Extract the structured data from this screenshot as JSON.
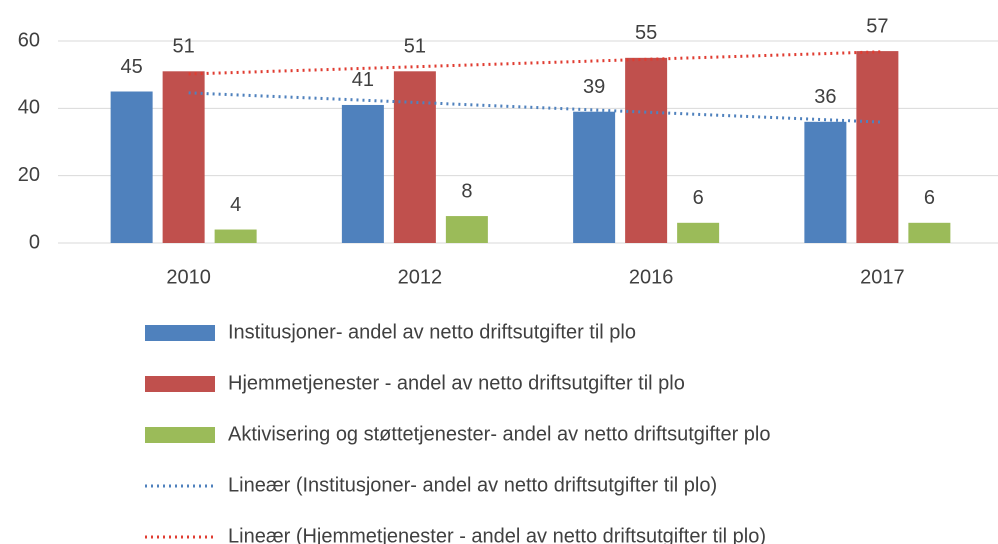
{
  "chart_data": {
    "type": "bar",
    "categories": [
      "2010",
      "2012",
      "2016",
      "2017"
    ],
    "ylim": [
      0,
      60
    ],
    "yticks": [
      0,
      20,
      40,
      60
    ],
    "grid": true,
    "series": [
      {
        "name": "Institusjoner- andel av netto driftsutgifter til plo",
        "color": "#4f81bd",
        "values": [
          45,
          41,
          39,
          36
        ]
      },
      {
        "name": "Hjemmetjenester - andel av netto driftsutgifter til plo",
        "color": "#c0504d",
        "values": [
          51,
          51,
          55,
          57
        ]
      },
      {
        "name": "Aktivisering og støttetjenester- andel av netto driftsutgifter plo",
        "color": "#9bbb59",
        "values": [
          4,
          8,
          6,
          6
        ]
      },
      {
        "name": "Lineær (Institusjoner- andel av netto driftsutgifter til plo)",
        "color": "#4f81bd",
        "type": "line",
        "line_style": "dotted",
        "values": [
          44.6,
          41.7,
          38.8,
          35.9
        ]
      },
      {
        "name": "Lineær (Hjemmetjenester - andel av netto driftsutgifter til plo)",
        "color": "#e03c31",
        "type": "line",
        "line_style": "dotted",
        "values": [
          50.2,
          52.4,
          54.6,
          56.8
        ]
      }
    ]
  }
}
